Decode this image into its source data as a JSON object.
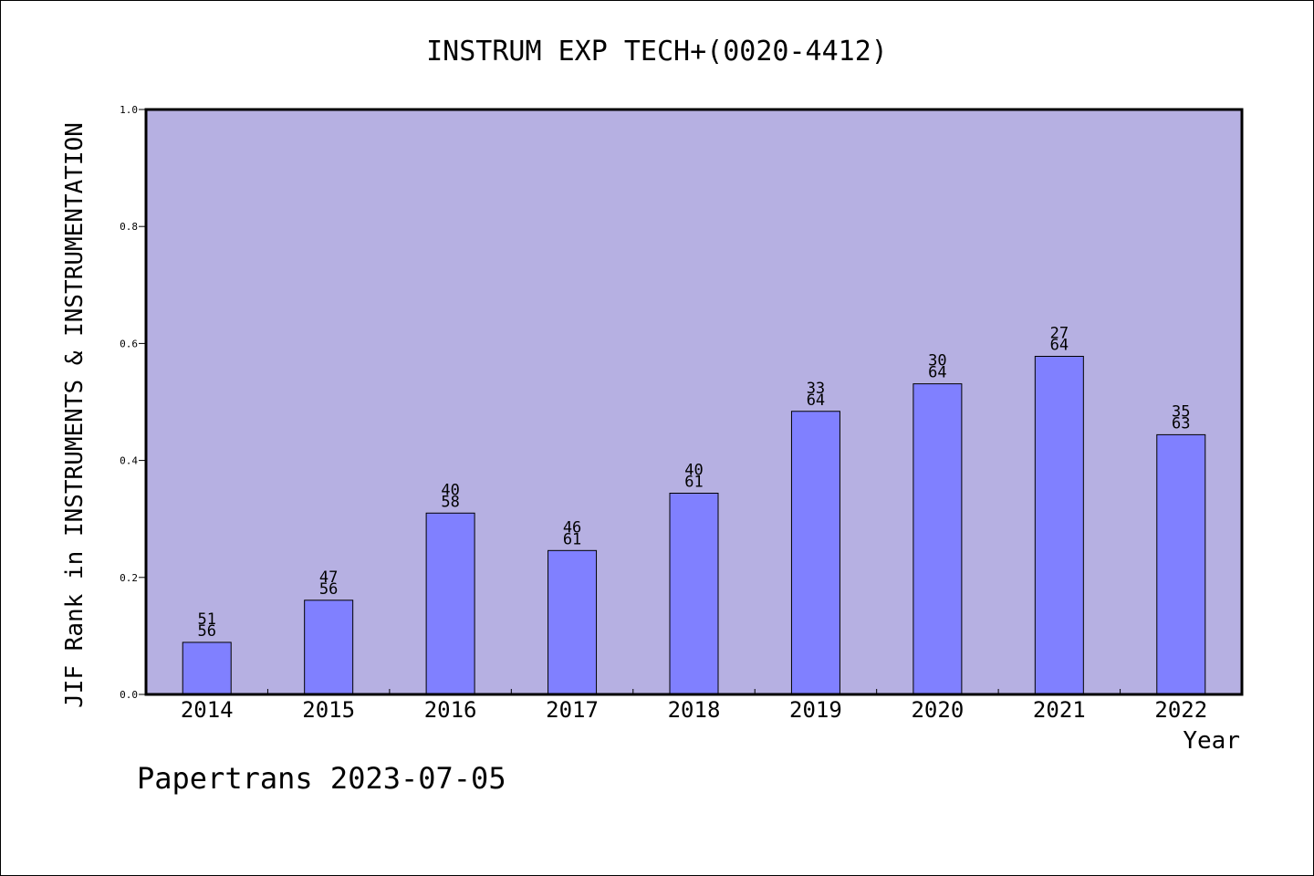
{
  "chart_data": {
    "type": "bar",
    "title": "INSTRUM EXP TECH+(0020-4412)",
    "xlabel": "Year",
    "ylabel": "JIF Rank in INSTRUMENTS & INSTRUMENTATION",
    "categories": [
      "2014",
      "2015",
      "2016",
      "2017",
      "2018",
      "2019",
      "2020",
      "2021",
      "2022"
    ],
    "values": [
      0.089,
      0.161,
      0.31,
      0.246,
      0.344,
      0.484,
      0.531,
      0.578,
      0.444
    ],
    "rank_labels": [
      [
        "51",
        "56"
      ],
      [
        "47",
        "56"
      ],
      [
        "40",
        "58"
      ],
      [
        "46",
        "61"
      ],
      [
        "40",
        "61"
      ],
      [
        "33",
        "64"
      ],
      [
        "30",
        "64"
      ],
      [
        "27",
        "64"
      ],
      [
        "35",
        "63"
      ]
    ],
    "ylim": [
      0,
      1.0
    ],
    "yticks": [
      "0.0",
      "0.2",
      "0.4",
      "0.6",
      "0.8",
      "1.0"
    ],
    "grid": false,
    "legend": "none",
    "colors": {
      "plot_background": "#b6b0e2",
      "bar_fill": "#8080ff",
      "bar_stroke": "#000000"
    }
  },
  "footer": {
    "credit": "Papertrans 2023-07-05"
  }
}
